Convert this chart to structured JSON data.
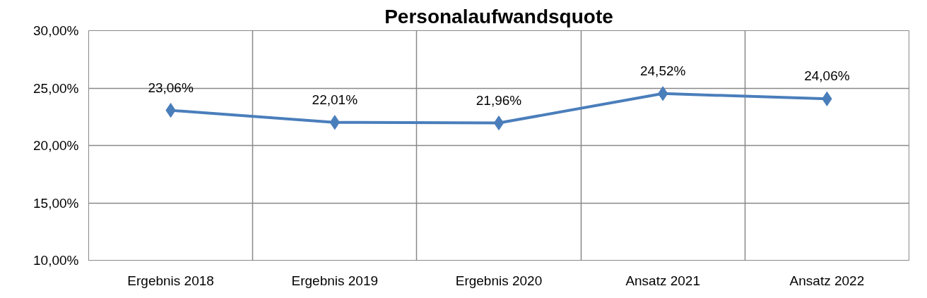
{
  "chart_data": {
    "type": "line",
    "title": "Personalaufwandsquote",
    "categories": [
      "Ergebnis 2018",
      "Ergebnis 2019",
      "Ergebnis 2020",
      "Ansatz 2021",
      "Ansatz 2022"
    ],
    "series": [
      {
        "color": "#4a7ebb",
        "values": [
          23.06,
          22.01,
          21.96,
          24.52,
          24.06
        ],
        "value_labels": [
          "23,06%",
          "22,01%",
          "21,96%",
          "24,52%",
          "24,06%"
        ]
      }
    ],
    "ylim": [
      10,
      30
    ],
    "yticks": [
      {
        "value": 10,
        "label": "10,00%"
      },
      {
        "value": 15,
        "label": "15,00%"
      },
      {
        "value": 20,
        "label": "20,00%"
      },
      {
        "value": 25,
        "label": "25,00%"
      },
      {
        "value": 30,
        "label": "30,00%"
      }
    ],
    "grid": true,
    "marker": "diamond",
    "line_style": "solid"
  }
}
